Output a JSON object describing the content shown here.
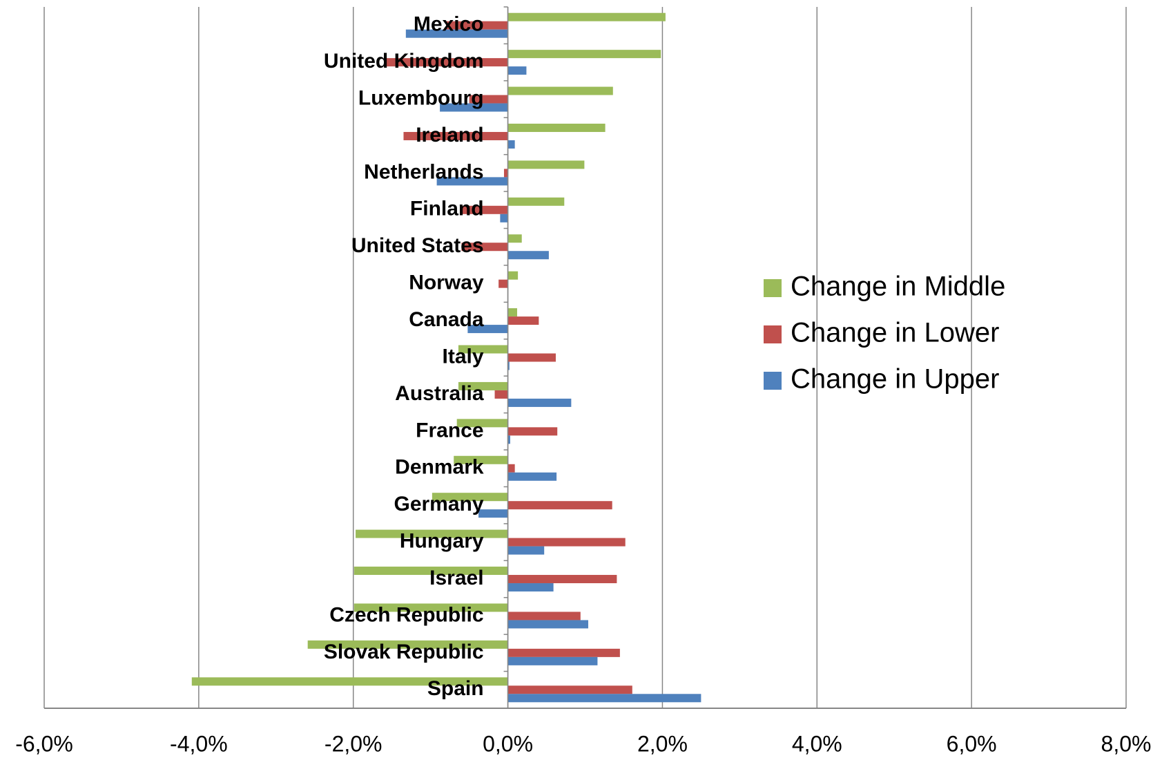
{
  "chart_data": {
    "type": "bar",
    "orientation": "horizontal",
    "categories": [
      "Mexico",
      "United Kingdom",
      "Luxembourg",
      "Ireland",
      "Netherlands",
      "Finland",
      "United States",
      "Norway",
      "Canada",
      "Italy",
      "Australia",
      "France",
      "Denmark",
      "Germany",
      "Hungary",
      "Israel",
      "Czech Republic",
      "Slovak Republic",
      "Spain"
    ],
    "series": [
      {
        "name": "Change in Middle",
        "color": "#9bbb59",
        "values": [
          2.04,
          1.98,
          1.36,
          1.26,
          0.99,
          0.73,
          0.18,
          0.13,
          0.12,
          -0.64,
          -0.64,
          -0.66,
          -0.7,
          -0.98,
          -1.97,
          -1.99,
          -1.99,
          -2.59,
          -4.09
        ]
      },
      {
        "name": "Change in Lower",
        "color": "#c0504d",
        "values": [
          -0.8,
          -1.6,
          -0.5,
          -1.35,
          -0.05,
          -0.6,
          -0.6,
          -0.12,
          0.4,
          0.62,
          -0.17,
          0.64,
          0.09,
          1.35,
          1.52,
          1.41,
          0.94,
          1.45,
          1.61
        ]
      },
      {
        "name": "Change in Upper",
        "color": "#4f81bd",
        "values": [
          -1.32,
          0.24,
          -0.88,
          0.09,
          -0.92,
          -0.1,
          0.53,
          0.0,
          -0.52,
          0.02,
          0.82,
          0.03,
          0.63,
          -0.38,
          0.47,
          0.59,
          1.04,
          1.16,
          2.5
        ]
      }
    ],
    "xlim": [
      -6,
      8
    ],
    "xticks": [
      {
        "value": -6,
        "label": "-6,0%"
      },
      {
        "value": -4,
        "label": "-4,0%"
      },
      {
        "value": -2,
        "label": "-2,0%"
      },
      {
        "value": 0,
        "label": "0,0%"
      },
      {
        "value": 2,
        "label": "2,0%"
      },
      {
        "value": 4,
        "label": "4,0%"
      },
      {
        "value": 6,
        "label": "6,0%"
      },
      {
        "value": 8,
        "label": "8,0%"
      }
    ],
    "grid": true,
    "legend": "right"
  }
}
